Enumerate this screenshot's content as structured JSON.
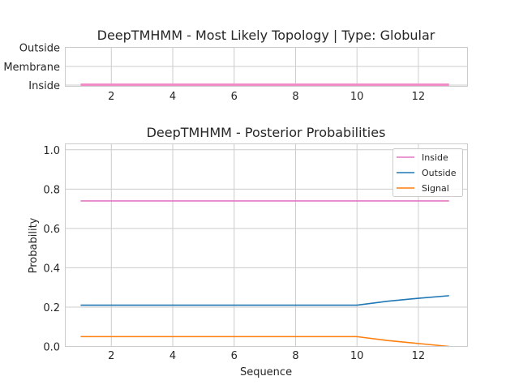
{
  "chart_data": [
    {
      "type": "line",
      "title": "DeepTMHMM - Most Likely Topology | Type: Globular",
      "xlabel": "",
      "ylabel": "",
      "xlim": [
        0.5,
        13.6
      ],
      "xticks": [
        2,
        4,
        6,
        8,
        10,
        12
      ],
      "ycategories": [
        "Inside",
        "Membrane",
        "Outside"
      ],
      "grid": true,
      "series": [
        {
          "color": "#f28cc7",
          "x": [
            1,
            2,
            3,
            4,
            5,
            6,
            7,
            8,
            9,
            10,
            11,
            12,
            13
          ],
          "values": [
            "Inside",
            "Inside",
            "Inside",
            "Inside",
            "Inside",
            "Inside",
            "Inside",
            "Inside",
            "Inside",
            "Inside",
            "Inside",
            "Inside",
            "Inside"
          ]
        }
      ]
    },
    {
      "type": "line",
      "title": "DeepTMHMM - Posterior Probabilities",
      "xlabel": "Sequence",
      "ylabel": "Probability",
      "xlim": [
        0.5,
        13.6
      ],
      "ylim": [
        0,
        1.03
      ],
      "xticks": [
        2,
        4,
        6,
        8,
        10,
        12
      ],
      "yticks": [
        0.0,
        0.2,
        0.4,
        0.6,
        0.8,
        1.0
      ],
      "grid": true,
      "legend": "top-right",
      "x": [
        1,
        2,
        3,
        4,
        5,
        6,
        7,
        8,
        9,
        10,
        11,
        12,
        13
      ],
      "series": [
        {
          "name": "Inside",
          "color": "#e377c2",
          "values": [
            0.74,
            0.74,
            0.74,
            0.74,
            0.74,
            0.74,
            0.74,
            0.74,
            0.74,
            0.74,
            0.74,
            0.74,
            0.74
          ]
        },
        {
          "name": "Outside",
          "color": "#1f77b4",
          "values": [
            0.21,
            0.21,
            0.21,
            0.21,
            0.21,
            0.21,
            0.21,
            0.21,
            0.21,
            0.21,
            0.23,
            0.245,
            0.258
          ]
        },
        {
          "name": "Signal",
          "color": "#ff7f0e",
          "values": [
            0.05,
            0.05,
            0.05,
            0.05,
            0.05,
            0.05,
            0.05,
            0.05,
            0.05,
            0.05,
            0.03,
            0.015,
            0.0
          ]
        }
      ]
    }
  ]
}
